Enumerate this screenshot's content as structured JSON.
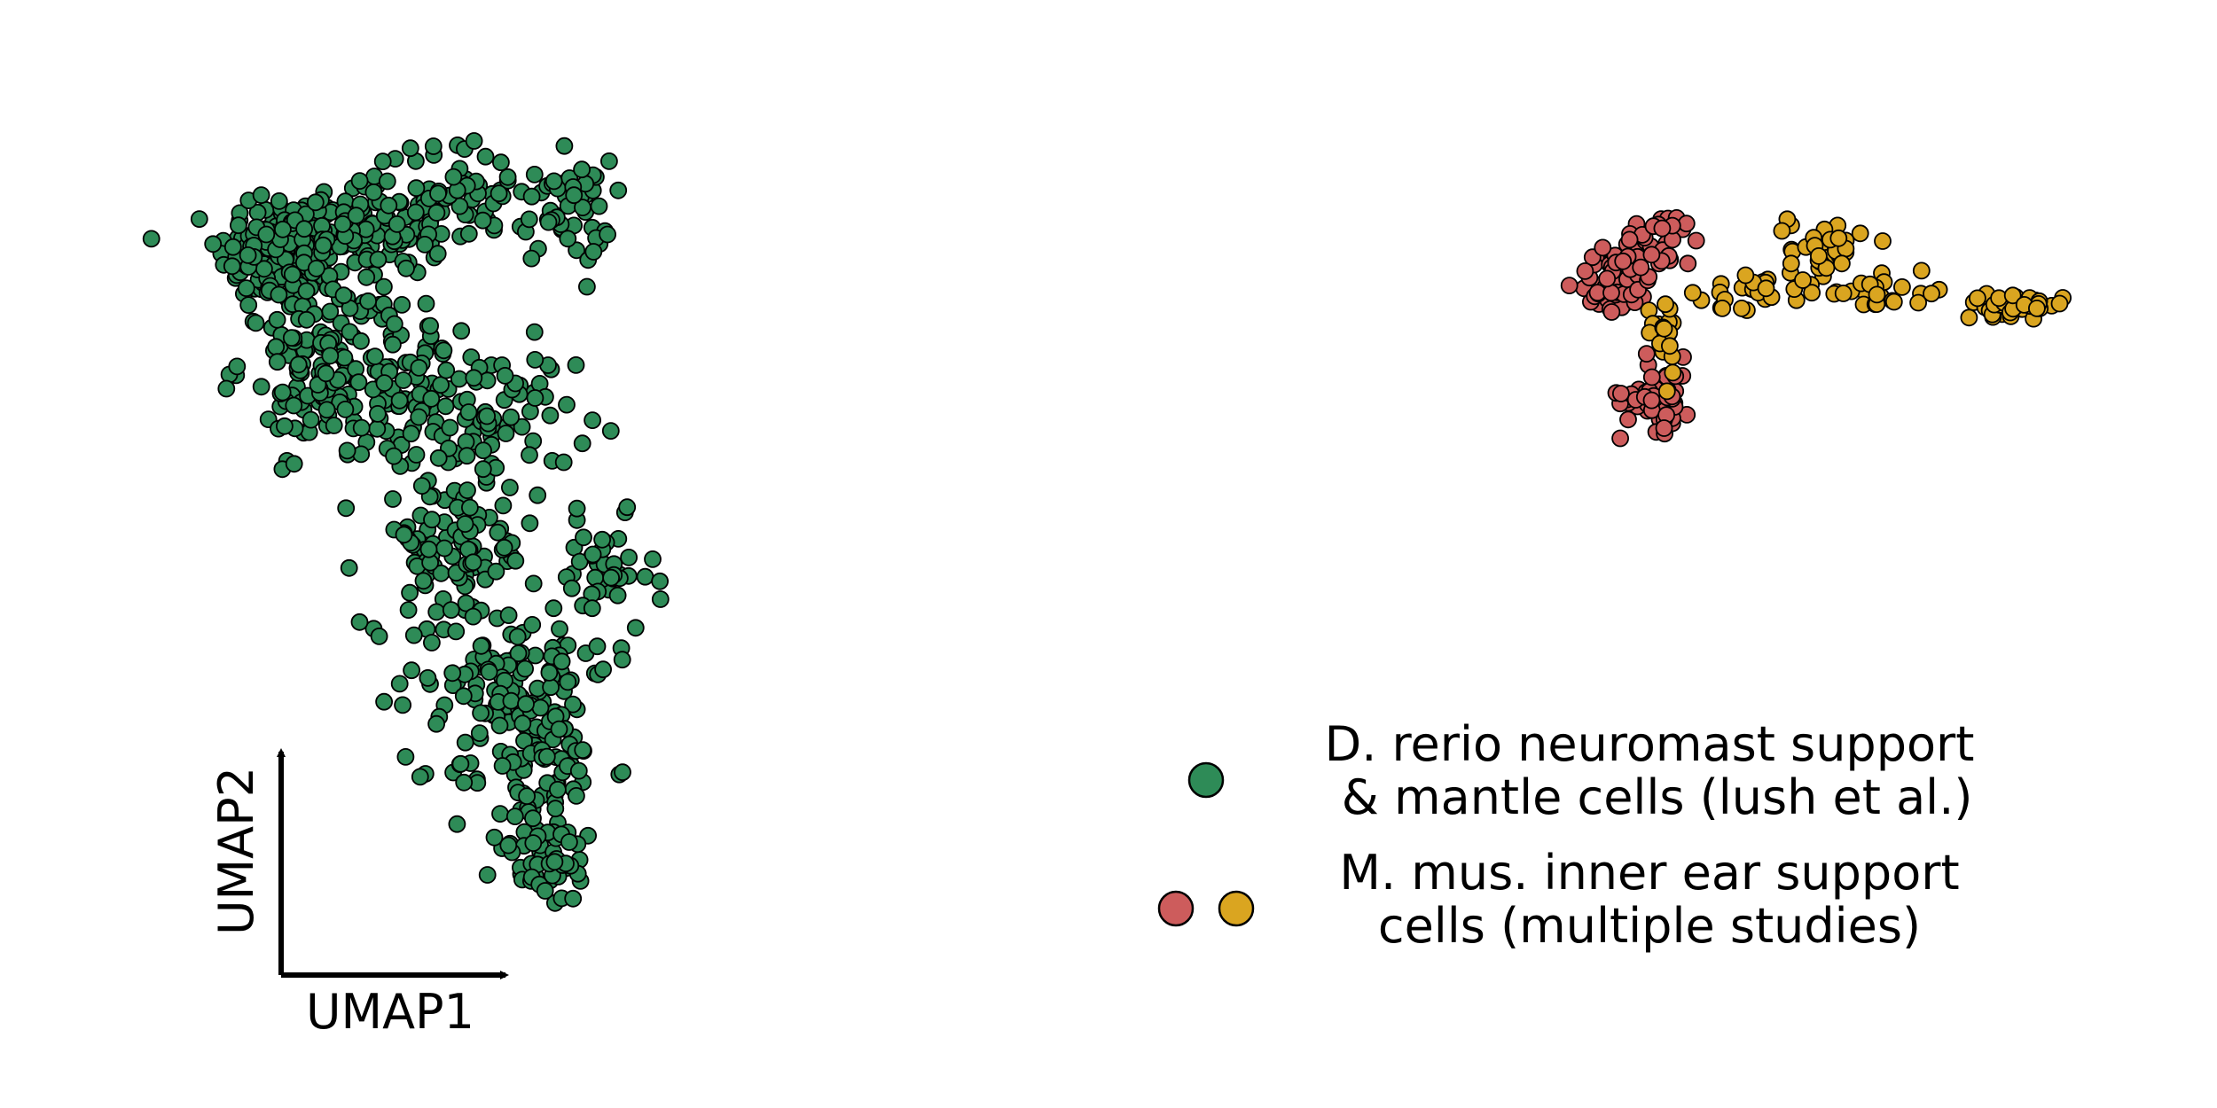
{
  "chart_data": {
    "type": "scatter",
    "title": "",
    "xlabel": "UMAP1",
    "ylabel": "UMAP2",
    "grid": false,
    "axis_ticks": false,
    "legend_placement": "bottom-right",
    "series": [
      {
        "key": "zebrafish",
        "color": "#2e8b57",
        "clusters": [
          {
            "center": [
              -6.6,
              5.6
            ],
            "spread": [
              0.45,
              0.4
            ],
            "n": 170
          },
          {
            "center": [
              -5.6,
              5.9
            ],
            "spread": [
              0.6,
              0.4
            ],
            "n": 110
          },
          {
            "center": [
              -4.1,
              6.4
            ],
            "spread": [
              0.5,
              0.35
            ],
            "n": 60
          },
          {
            "center": [
              -2.7,
              6.15
            ],
            "spread": [
              0.3,
              0.35
            ],
            "n": 50
          },
          {
            "center": [
              -6.1,
              4.2
            ],
            "spread": [
              0.55,
              0.6
            ],
            "n": 110
          },
          {
            "center": [
              -5.1,
              3.8
            ],
            "spread": [
              0.65,
              0.55
            ],
            "n": 110
          },
          {
            "center": [
              -3.7,
              3.3
            ],
            "spread": [
              0.55,
              0.5
            ],
            "n": 70
          },
          {
            "center": [
              -4.3,
              1.6
            ],
            "spread": [
              0.6,
              0.5
            ],
            "n": 90
          },
          {
            "center": [
              -2.2,
              1.2
            ],
            "spread": [
              0.35,
              0.4
            ],
            "n": 40
          },
          {
            "center": [
              -3.5,
              0.0
            ],
            "spread": [
              0.7,
              0.45
            ],
            "n": 100
          },
          {
            "center": [
              -3.2,
              -1.3
            ],
            "spread": [
              0.55,
              0.5
            ],
            "n": 90
          },
          {
            "center": [
              -3.0,
              -2.6
            ],
            "spread": [
              0.35,
              0.3
            ],
            "n": 50
          }
        ]
      },
      {
        "key": "mouse_red",
        "color": "#cd5c5c",
        "clusters": [
          {
            "center": [
              11.7,
              5.2
            ],
            "spread": [
              0.25,
              0.22
            ],
            "n": 50
          },
          {
            "center": [
              12.35,
              5.7
            ],
            "spread": [
              0.3,
              0.22
            ],
            "n": 40
          },
          {
            "center": [
              12.3,
              3.7
            ],
            "spread": [
              0.25,
              0.25
            ],
            "n": 50
          }
        ]
      },
      {
        "key": "mouse_gold",
        "color": "#daa520",
        "clusters": [
          {
            "center": [
              12.4,
              4.55
            ],
            "spread": [
              0.12,
              0.35
            ],
            "n": 18
          },
          {
            "center": [
              13.6,
              5.1
            ],
            "spread": [
              0.5,
              0.12
            ],
            "n": 26
          },
          {
            "center": [
              14.6,
              5.65
            ],
            "spread": [
              0.25,
              0.25
            ],
            "n": 35
          },
          {
            "center": [
              15.5,
              5.05
            ],
            "spread": [
              0.4,
              0.12
            ],
            "n": 22
          },
          {
            "center": [
              17.2,
              4.9
            ],
            "spread": [
              0.35,
              0.07
            ],
            "n": 40
          }
        ]
      }
    ],
    "legend": [
      {
        "label_lines": [
          "D. rerio neuromast support",
          " & mantle cells (lush et al.)"
        ],
        "colors": [
          "#2e8b57"
        ]
      },
      {
        "label_lines": [
          "M. mus. inner ear support",
          "cells (multiple studies)"
        ],
        "colors": [
          "#cd5c5c",
          "#daa520"
        ]
      }
    ],
    "xlim": [
      -10.5,
      20.0
    ],
    "ylim": [
      -5.9,
      9.0
    ]
  }
}
